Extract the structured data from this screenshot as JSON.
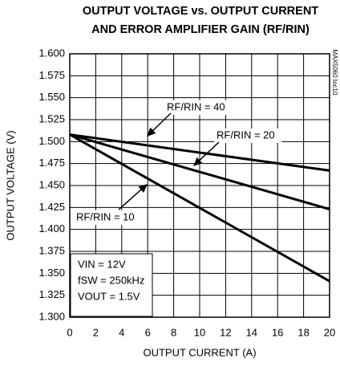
{
  "chart_data": {
    "type": "line",
    "title": "OUTPUT VOLTAGE vs. OUTPUT CURRENT",
    "subtitle": "AND ERROR AMPLIFIER GAIN (RF/RIN)",
    "xlabel": "OUTPUT CURRENT (A)",
    "ylabel": "OUTPUT VOLTAGE (V)",
    "watermark": "MAX5060 toc10",
    "x": [
      0,
      20
    ],
    "series": [
      {
        "name": "RF/RIN = 40",
        "color": "#000000",
        "values": [
          1.508,
          1.467
        ]
      },
      {
        "name": "RF/RIN = 20",
        "color": "#000000",
        "values": [
          1.508,
          1.423
        ]
      },
      {
        "name": "RF/RIN = 10",
        "color": "#000000",
        "values": [
          1.508,
          1.341
        ]
      }
    ],
    "annotations": [
      "VIN = 12V",
      "fSW = 250kHz",
      "VOUT = 1.5V"
    ],
    "xlim": [
      0,
      20
    ],
    "xticks": [
      0,
      2,
      4,
      6,
      8,
      10,
      12,
      14,
      16,
      18,
      20
    ],
    "ylim": [
      1.3,
      1.6
    ],
    "yticks": [
      {
        "value": 1.3,
        "label": "1.300"
      },
      1.325,
      {
        "value": 1.35,
        "label": "1.350"
      },
      1.375,
      {
        "value": 1.4,
        "label": "1.400"
      },
      1.425,
      {
        "value": 1.45,
        "label": "1.450"
      },
      1.475,
      {
        "value": 1.5,
        "label": "1.500"
      },
      1.525,
      {
        "value": 1.55,
        "label": "1.550"
      },
      1.575,
      {
        "value": 1.6,
        "label": "1.600"
      }
    ],
    "grid": true
  }
}
